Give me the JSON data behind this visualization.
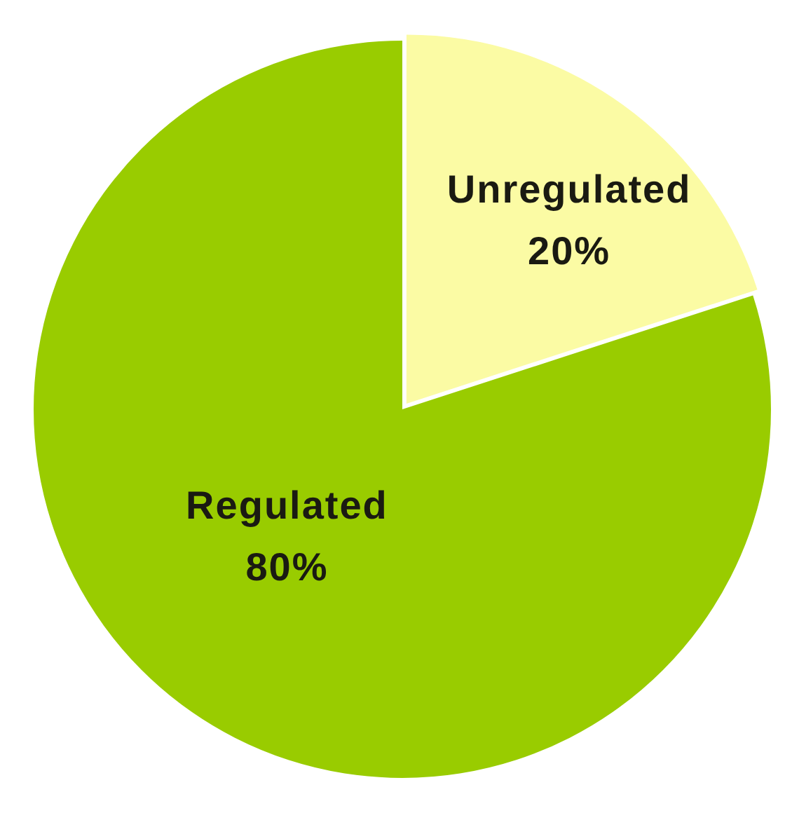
{
  "chart_data": {
    "type": "pie",
    "categories": [
      "Unregulated",
      "Regulated"
    ],
    "values": [
      20,
      80
    ],
    "colors": [
      "#fbfba4",
      "#99cc00"
    ],
    "value_labels": [
      "20%",
      "80%"
    ]
  }
}
